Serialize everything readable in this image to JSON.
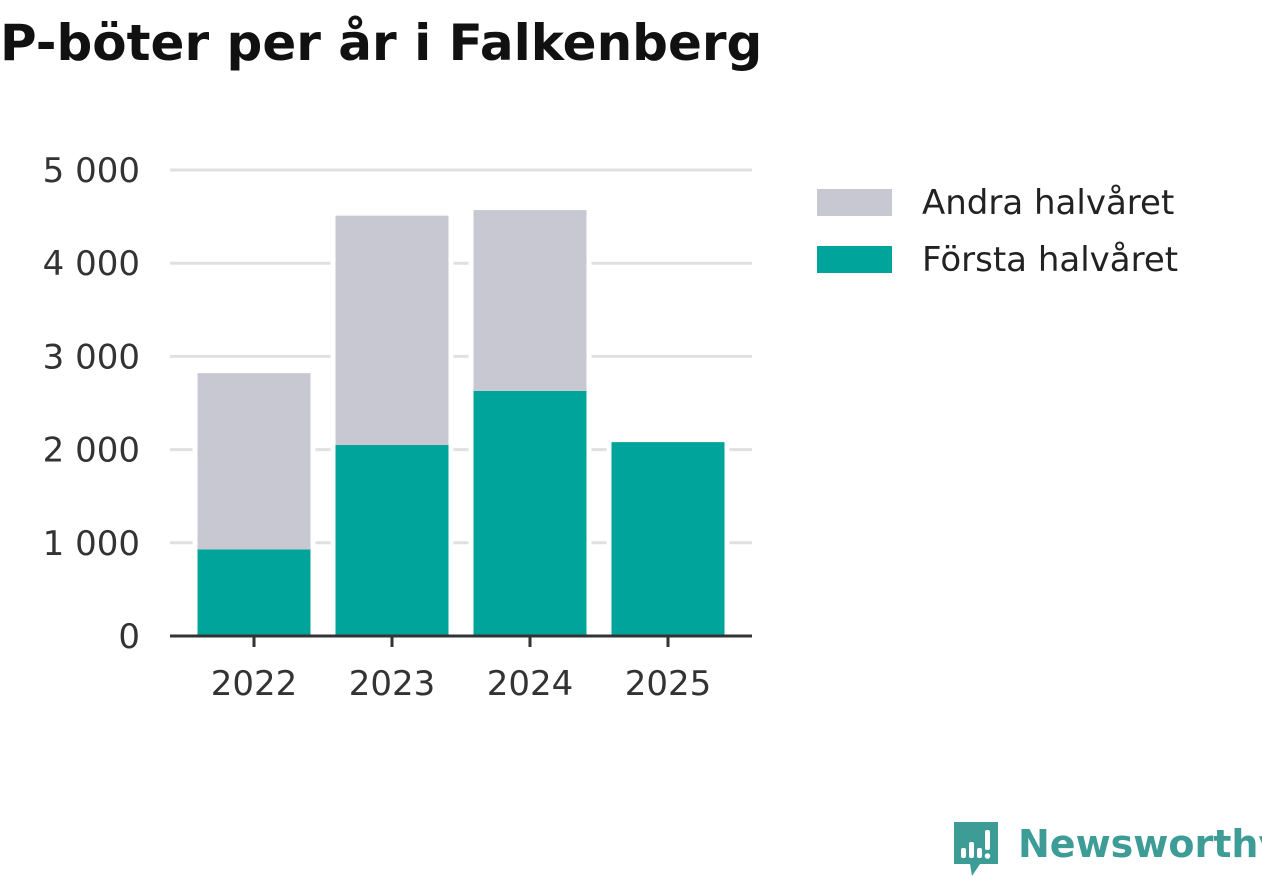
{
  "title": "P-böter per år i Falkenberg",
  "colors": {
    "andra": "#c8c8d2",
    "forsta": "#00a49a",
    "grid": "#e0e0e0",
    "axis": "#333333",
    "brand": "#3d9c95"
  },
  "brand": {
    "name": "Newsworthy",
    "icon": "newsworthy-logo-icon"
  },
  "chart_data": {
    "type": "bar",
    "stacked": true,
    "title": "P-böter per år i Falkenberg",
    "xlabel": "",
    "ylabel": "",
    "categories": [
      "2022",
      "2023",
      "2024",
      "2025"
    ],
    "series": [
      {
        "name": "Första halvåret",
        "color": "#00a49a",
        "values": [
          930,
          2050,
          2630,
          2080
        ]
      },
      {
        "name": "Andra halvåret",
        "color": "#c8c8d2",
        "values": [
          1890,
          2460,
          1940,
          null
        ]
      }
    ],
    "ylim": [
      0,
      5000
    ],
    "yticks": [
      0,
      1000,
      2000,
      3000,
      4000,
      5000
    ],
    "ytick_labels": [
      "0",
      "1 000",
      "2 000",
      "3 000",
      "4 000",
      "5 000"
    ],
    "grid": true,
    "legend_position": "right"
  },
  "legend": [
    {
      "label": "Andra halvåret",
      "color": "#c8c8d2"
    },
    {
      "label": "Första halvåret",
      "color": "#00a49a"
    }
  ]
}
